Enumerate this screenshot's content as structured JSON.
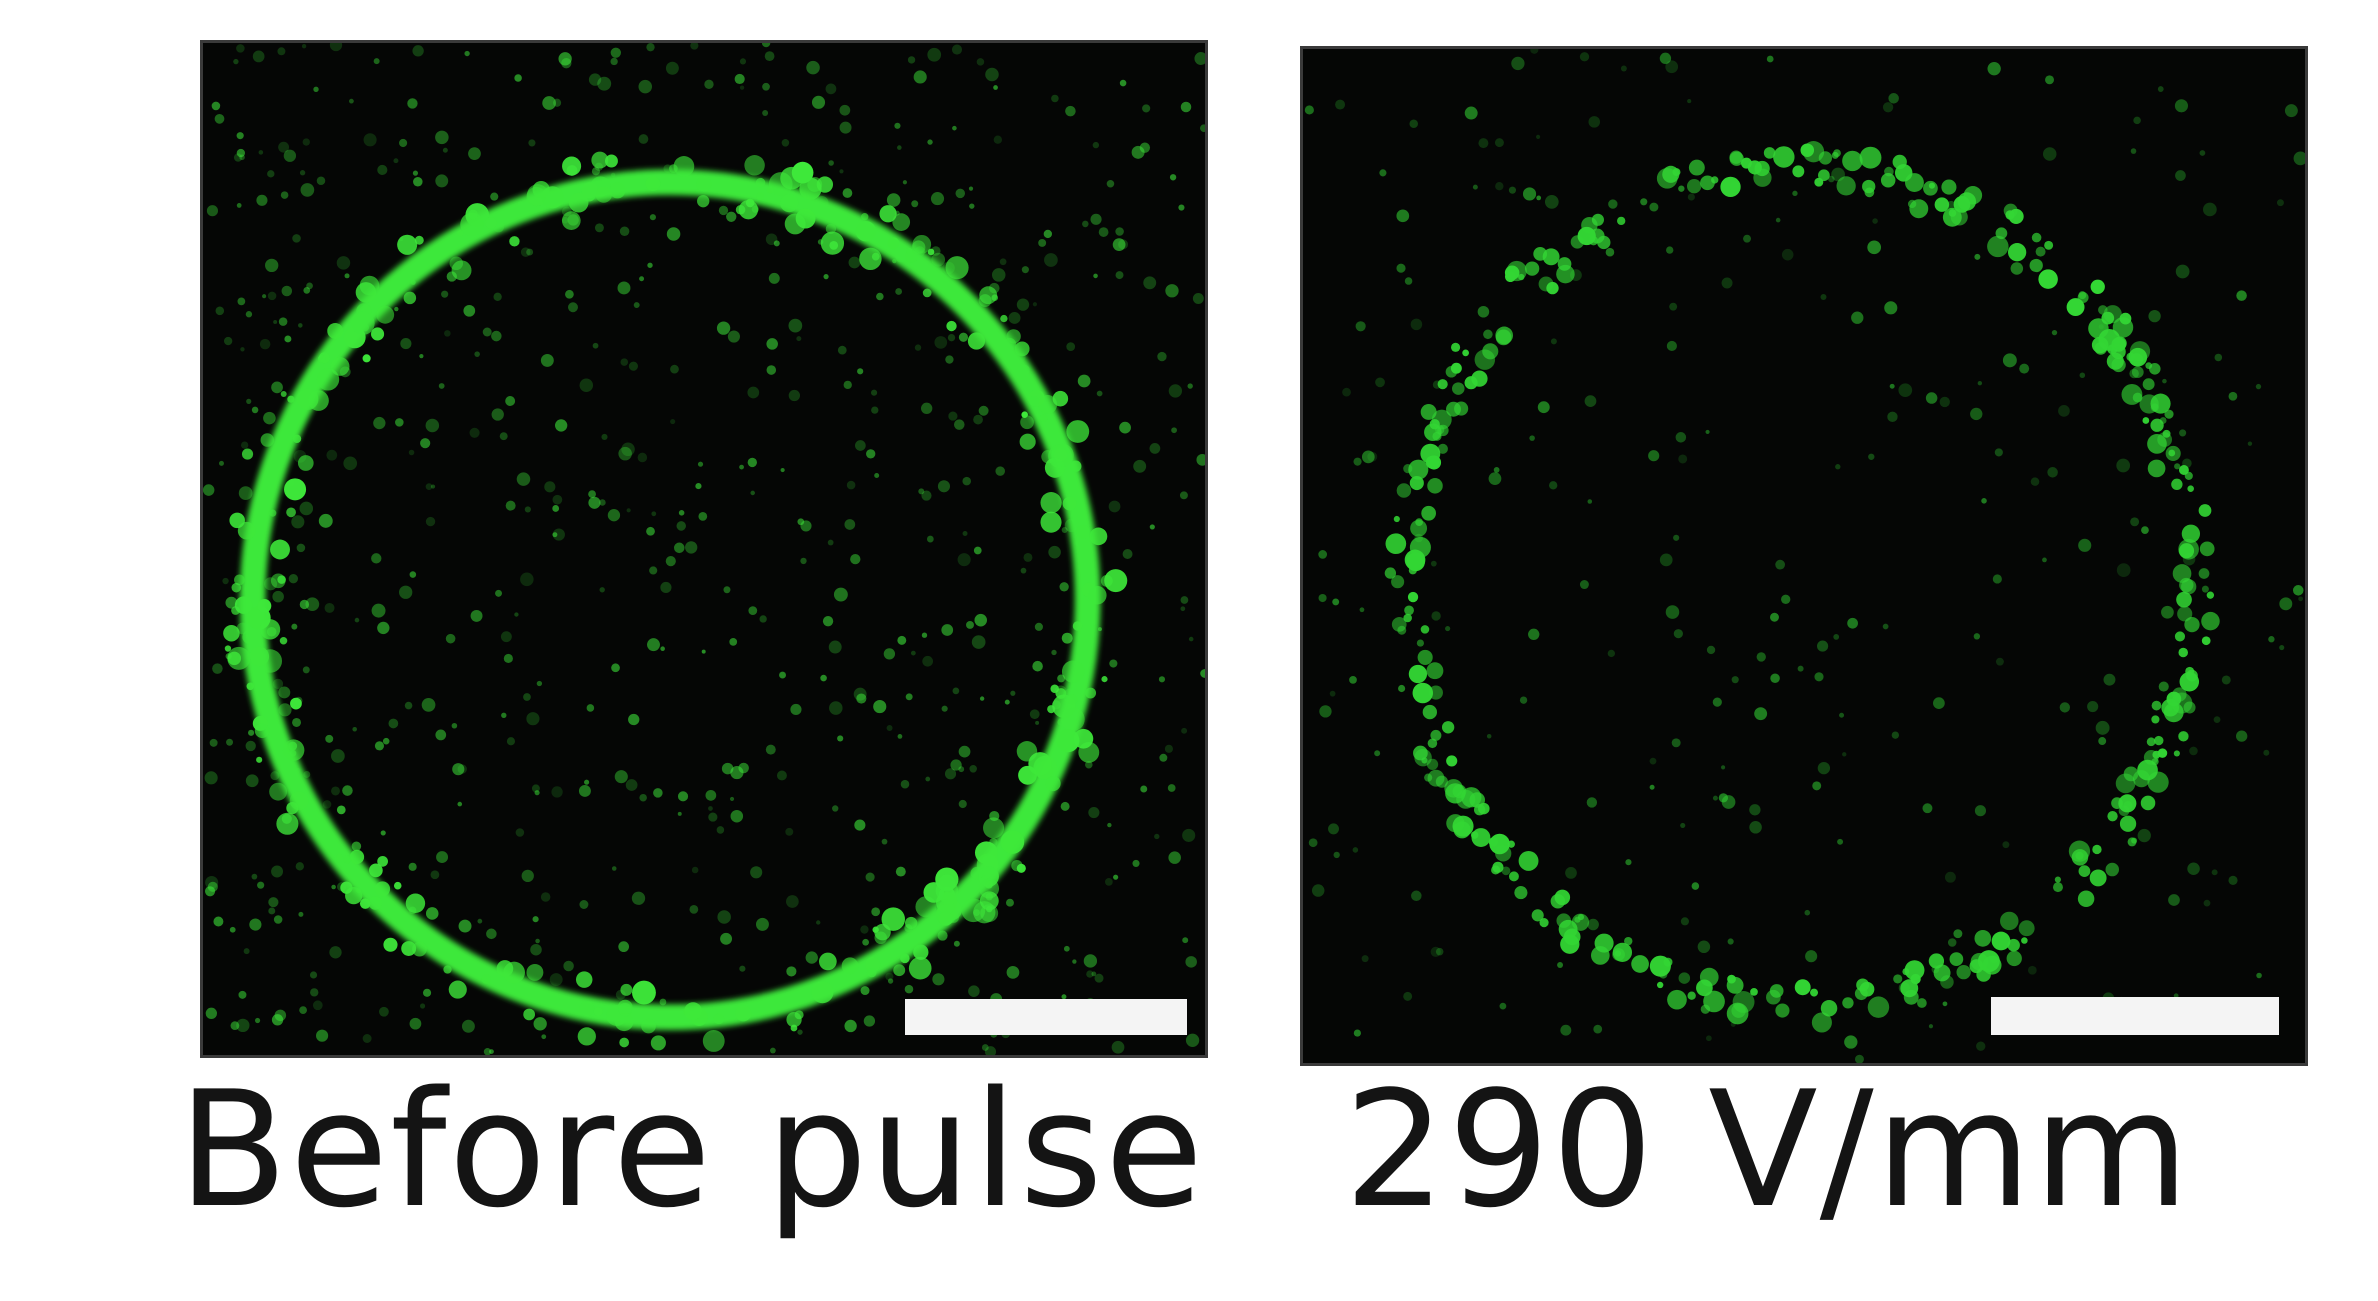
{
  "figure": {
    "panels": [
      {
        "caption": "Before pulse",
        "ring_color": "#3ee83a",
        "background": "#050605"
      },
      {
        "caption": "290 V/mm",
        "ring_color": "#33d634",
        "background": "#050605"
      }
    ]
  }
}
